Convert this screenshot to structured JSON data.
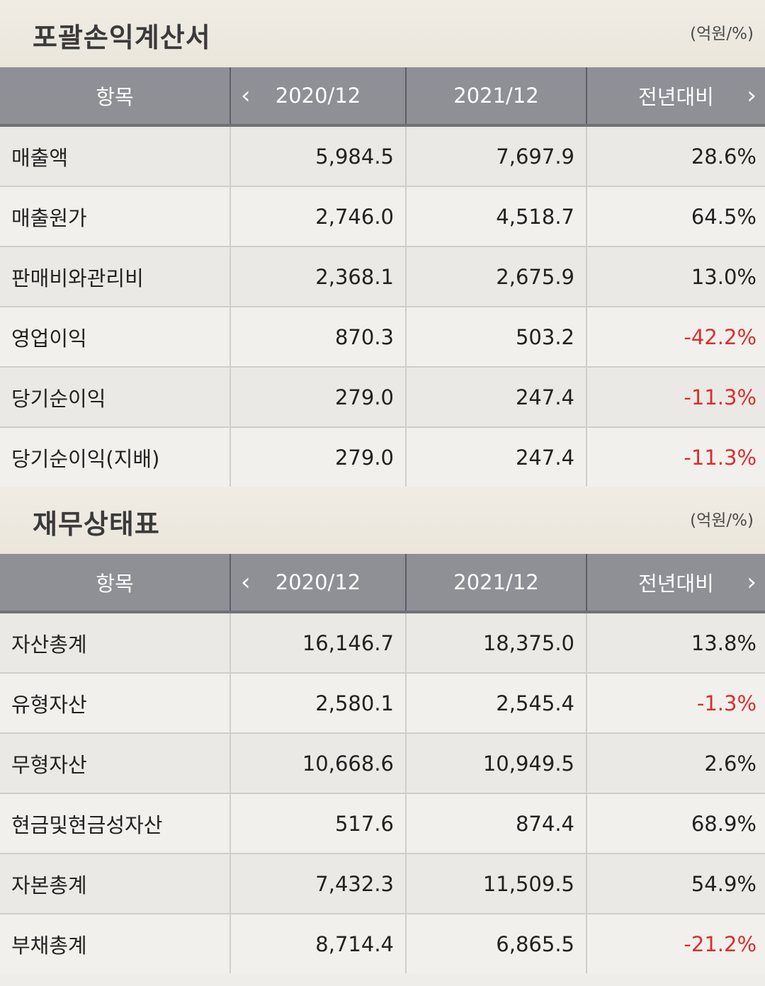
{
  "income_statement": {
    "title": "포괄손익계산서",
    "unit": "(억원/%)",
    "headers": {
      "item": "항목",
      "col1": "2020/12",
      "col2": "2021/12",
      "col3": "전년대비",
      "prev_icon": "‹",
      "next_icon": "›"
    },
    "rows": [
      {
        "label": "매출액",
        "v2020": "5,984.5",
        "v2021": "7,697.9",
        "change": "28.6%"
      },
      {
        "label": "매출원가",
        "v2020": "2,746.0",
        "v2021": "4,518.7",
        "change": "64.5%"
      },
      {
        "label": "판매비와관리비",
        "v2020": "2,368.1",
        "v2021": "2,675.9",
        "change": "13.0%"
      },
      {
        "label": "영업이익",
        "v2020": "870.3",
        "v2021": "503.2",
        "change": "-42.2%"
      },
      {
        "label": "당기순이익",
        "v2020": "279.0",
        "v2021": "247.4",
        "change": "-11.3%"
      },
      {
        "label": "당기순이익(지배)",
        "v2020": "279.0",
        "v2021": "247.4",
        "change": "-11.3%"
      }
    ]
  },
  "balance_sheet": {
    "title": "재무상태표",
    "unit": "(억원/%)",
    "headers": {
      "item": "항목",
      "col1": "2020/12",
      "col2": "2021/12",
      "col3": "전년대비",
      "prev_icon": "‹",
      "next_icon": "›"
    },
    "rows": [
      {
        "label": "자산총계",
        "v2020": "16,146.7",
        "v2021": "18,375.0",
        "change": "13.8%"
      },
      {
        "label": "유형자산",
        "v2020": "2,580.1",
        "v2021": "2,545.4",
        "change": "-1.3%"
      },
      {
        "label": "무형자산",
        "v2020": "10,668.6",
        "v2021": "10,949.5",
        "change": "2.6%"
      },
      {
        "label": "현금및현금성자산",
        "v2020": "517.6",
        "v2021": "874.4",
        "change": "68.9%"
      },
      {
        "label": "자본총계",
        "v2020": "7,432.3",
        "v2021": "11,509.5",
        "change": "54.9%"
      },
      {
        "label": "부채총계",
        "v2020": "8,714.4",
        "v2021": "6,865.5",
        "change": "-21.2%"
      }
    ]
  },
  "colors": {
    "negative": "#d92f2f",
    "header_bg": "#8e9096",
    "section_bg": "#ebe6dc"
  }
}
